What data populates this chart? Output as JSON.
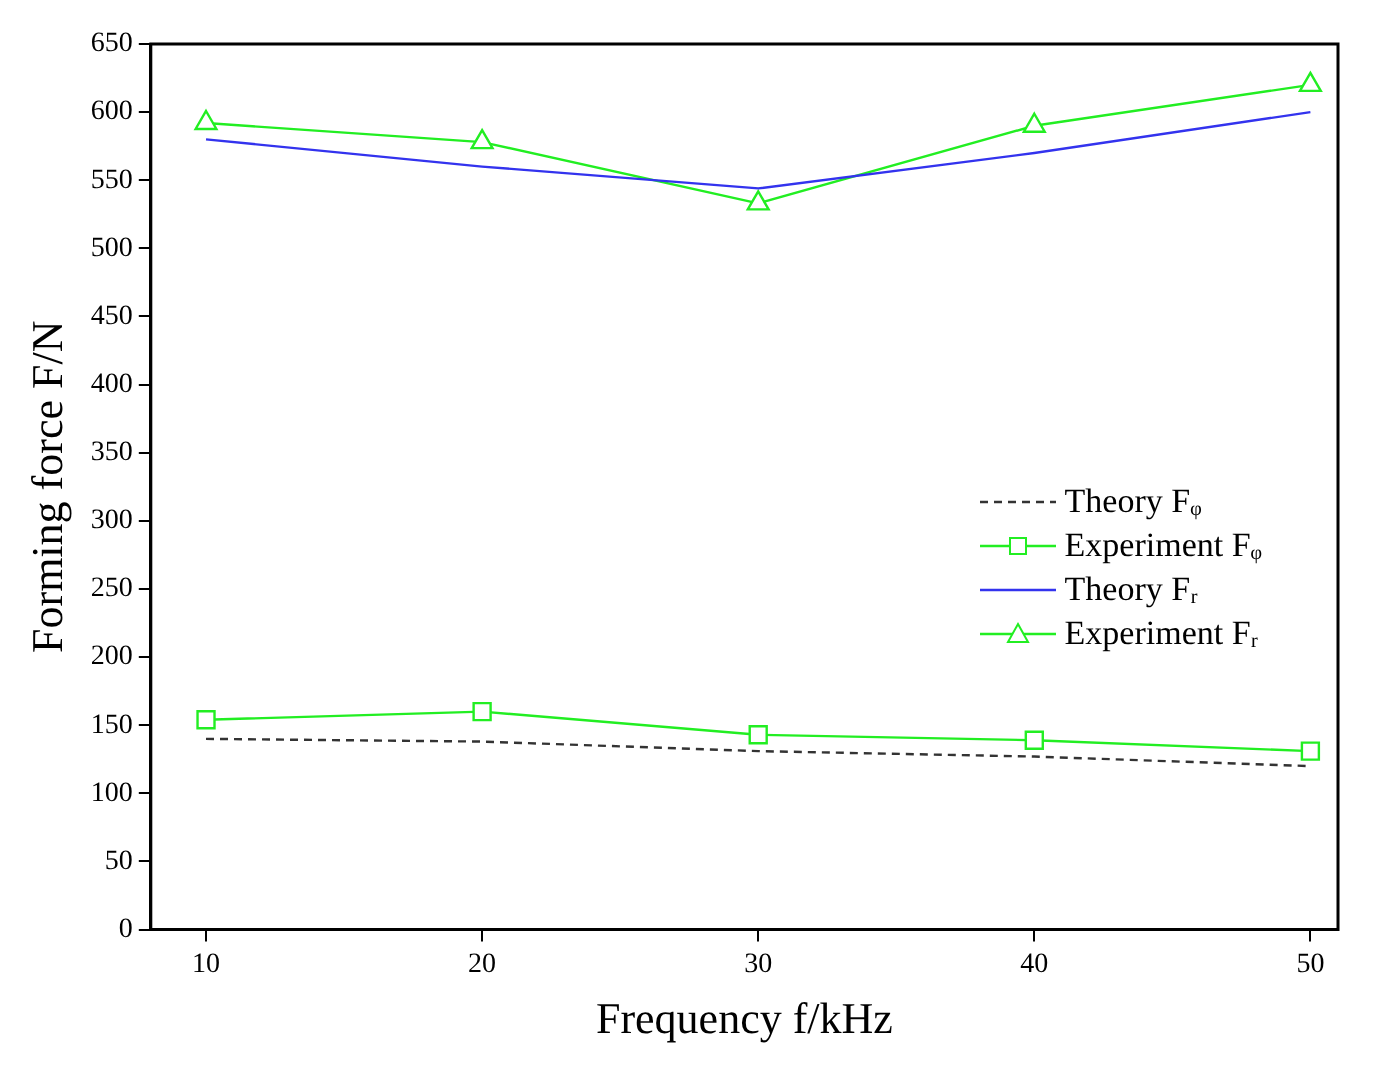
{
  "chart_data": {
    "type": "line",
    "xlabel": "Frequency f/kHz",
    "ylabel": "Forming force F/N",
    "x": [
      10,
      20,
      30,
      40,
      50
    ],
    "xlim": [
      8,
      51
    ],
    "xticks": [
      10,
      20,
      30,
      40,
      50
    ],
    "ylim": [
      0,
      650
    ],
    "yticks": [
      0,
      50,
      100,
      150,
      200,
      250,
      300,
      350,
      400,
      450,
      500,
      550,
      600,
      650
    ],
    "grid": false,
    "legend": "right",
    "series": [
      {
        "name": "Theory Fᵩ",
        "color": "#333333",
        "values": [
          140,
          138,
          131,
          127,
          120
        ],
        "marker": "none",
        "line_style": "dashed"
      },
      {
        "name": "Experiment Fᵩ",
        "color": "#22ee22",
        "values": [
          154,
          160,
          143,
          139,
          131
        ],
        "marker": "square",
        "line_style": "solid"
      },
      {
        "name": "Theory Fᵣ",
        "color": "#3333ee",
        "values": [
          580,
          560,
          544,
          570,
          600
        ],
        "marker": "none",
        "line_style": "solid"
      },
      {
        "name": "Experiment Fᵣ",
        "color": "#22ee22",
        "values": [
          592,
          578,
          533,
          590,
          620
        ],
        "marker": "triangle",
        "line_style": "solid"
      }
    ]
  }
}
